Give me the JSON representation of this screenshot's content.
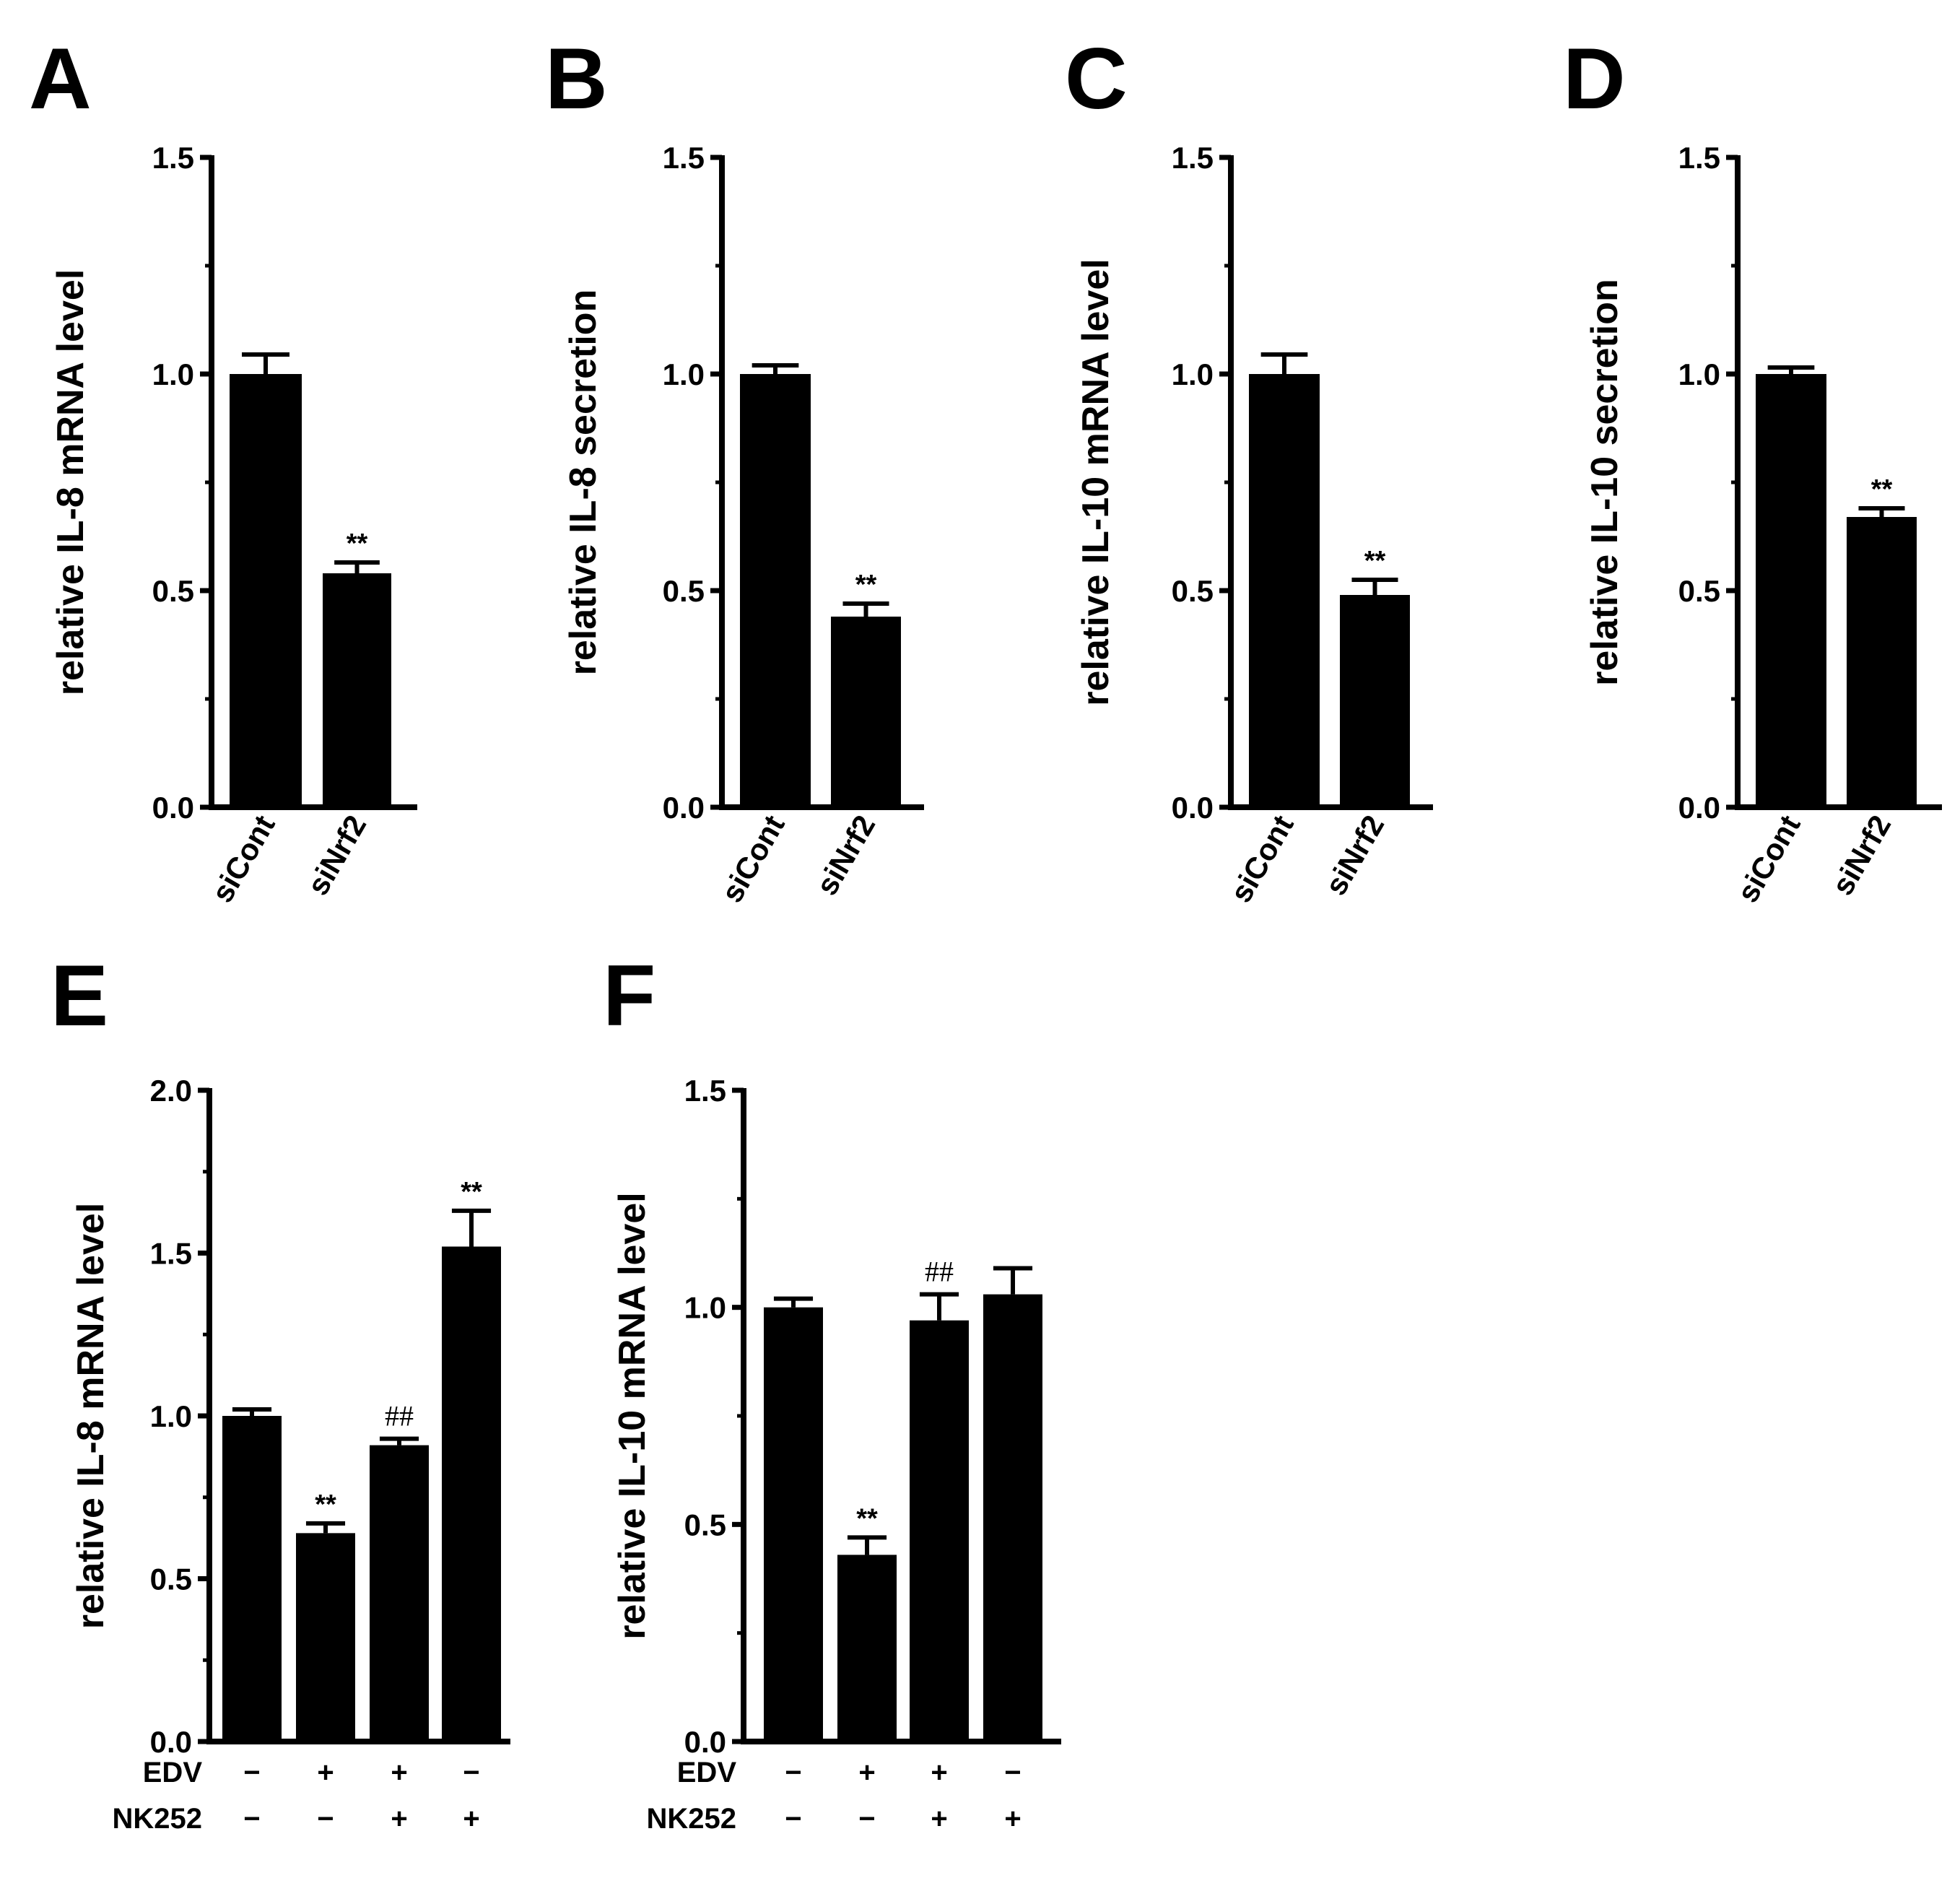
{
  "figure": {
    "panels": [
      {
        "letter": "A"
      },
      {
        "letter": "B"
      },
      {
        "letter": "C"
      },
      {
        "letter": "D"
      },
      {
        "letter": "E"
      },
      {
        "letter": "F"
      }
    ]
  },
  "chart_data": [
    {
      "panel": "A",
      "type": "bar",
      "ylabel": "relative IL-8 mRNA level",
      "ylim": [
        0,
        1.5
      ],
      "yticks": [
        "0.0",
        "0.5",
        "1.0",
        "1.5"
      ],
      "categories": [
        "siCont",
        "siNrf2"
      ],
      "values": [
        1.0,
        0.54
      ],
      "errors": [
        0.045,
        0.025
      ],
      "significance": [
        "",
        "**"
      ]
    },
    {
      "panel": "B",
      "type": "bar",
      "ylabel": "relative IL-8 secretion",
      "ylim": [
        0,
        1.5
      ],
      "yticks": [
        "0.0",
        "0.5",
        "1.0",
        "1.5"
      ],
      "categories": [
        "siCont",
        "siNrf2"
      ],
      "values": [
        1.0,
        0.44
      ],
      "errors": [
        0.02,
        0.03
      ],
      "significance": [
        "",
        "**"
      ]
    },
    {
      "panel": "C",
      "type": "bar",
      "ylabel": "relative IL-10 mRNA level",
      "ylim": [
        0,
        1.5
      ],
      "yticks": [
        "0.0",
        "0.5",
        "1.0",
        "1.5"
      ],
      "categories": [
        "siCont",
        "siNrf2"
      ],
      "values": [
        1.0,
        0.49
      ],
      "errors": [
        0.045,
        0.035
      ],
      "significance": [
        "",
        "**"
      ]
    },
    {
      "panel": "D",
      "type": "bar",
      "ylabel": "relative IL-10 secretion",
      "ylim": [
        0,
        1.5
      ],
      "yticks": [
        "0.0",
        "0.5",
        "1.0",
        "1.5"
      ],
      "categories": [
        "siCont",
        "siNrf2"
      ],
      "values": [
        1.0,
        0.67
      ],
      "errors": [
        0.015,
        0.02
      ],
      "significance": [
        "",
        "**"
      ]
    },
    {
      "panel": "E",
      "type": "bar",
      "ylabel": "relative IL-8 mRNA level",
      "ylim": [
        0,
        2.0
      ],
      "yticks": [
        "0.0",
        "0.5",
        "1.0",
        "1.5",
        "2.0"
      ],
      "values": [
        1.0,
        0.64,
        0.91,
        1.52
      ],
      "errors": [
        0.02,
        0.03,
        0.02,
        0.11
      ],
      "significance": [
        "",
        "**",
        "##",
        "**"
      ],
      "treatments": [
        {
          "name": "EDV",
          "signs": [
            "−",
            "+",
            "+",
            "−"
          ]
        },
        {
          "name": "NK252",
          "signs": [
            "−",
            "−",
            "+",
            "+"
          ]
        }
      ]
    },
    {
      "panel": "F",
      "type": "bar",
      "ylabel": "relative IL-10 mRNA level",
      "ylim": [
        0,
        1.5
      ],
      "yticks": [
        "0.0",
        "0.5",
        "1.0",
        "1.5"
      ],
      "values": [
        1.0,
        0.43,
        0.97,
        1.03
      ],
      "errors": [
        0.02,
        0.04,
        0.06,
        0.06
      ],
      "significance": [
        "",
        "**",
        "##",
        ""
      ],
      "treatments": [
        {
          "name": "EDV",
          "signs": [
            "−",
            "+",
            "+",
            "−"
          ]
        },
        {
          "name": "NK252",
          "signs": [
            "−",
            "−",
            "+",
            "+"
          ]
        }
      ]
    }
  ]
}
